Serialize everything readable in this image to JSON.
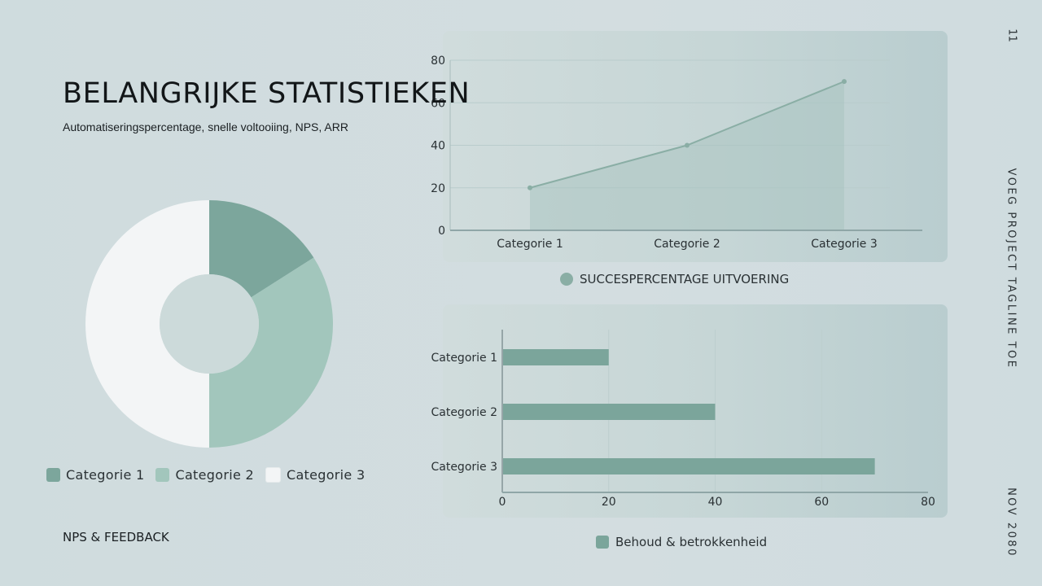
{
  "slide": {
    "title": "BELANGRIJKE STATISTIEKEN",
    "subtitle": "Automatiseringspercentage, snelle voltooiing, NPS, ARR",
    "page_number": "11",
    "tagline": "VOEG PROJECT TAGLINE TOE",
    "date": "NOV 2080",
    "footer": "NPS & FEEDBACK"
  },
  "colors": {
    "series_line": "#8aaea5",
    "series_bar": "#7ba59b",
    "cat1": "#7ca69c",
    "cat2": "#a2c6bc",
    "cat3": "#f3f5f6"
  },
  "chart_data": [
    {
      "type": "area",
      "categories": [
        "Categorie 1",
        "Categorie 2",
        "Categorie 3"
      ],
      "series": [
        {
          "name": "SUCCESPERCENTAGE UITVOERING",
          "values": [
            20,
            40,
            70
          ]
        }
      ],
      "yticks": [
        "0",
        "20",
        "40",
        "60",
        "80"
      ],
      "ylim": [
        0,
        80
      ],
      "grid": true,
      "legend": "bottom"
    },
    {
      "type": "bar",
      "orientation": "horizontal",
      "categories": [
        "Categorie 1",
        "Categorie 2",
        "Categorie 3"
      ],
      "series": [
        {
          "name": "Behoud & betrokkenheid",
          "values": [
            20,
            40,
            70
          ]
        }
      ],
      "xticks": [
        "0",
        "20",
        "40",
        "60",
        "80"
      ],
      "xlim": [
        0,
        80
      ],
      "grid": true,
      "legend": "bottom"
    },
    {
      "type": "pie",
      "donut": true,
      "categories": [
        "Categorie 1",
        "Categorie 2",
        "Categorie 3"
      ],
      "values": [
        16,
        34,
        50
      ],
      "legend": "bottom"
    }
  ]
}
